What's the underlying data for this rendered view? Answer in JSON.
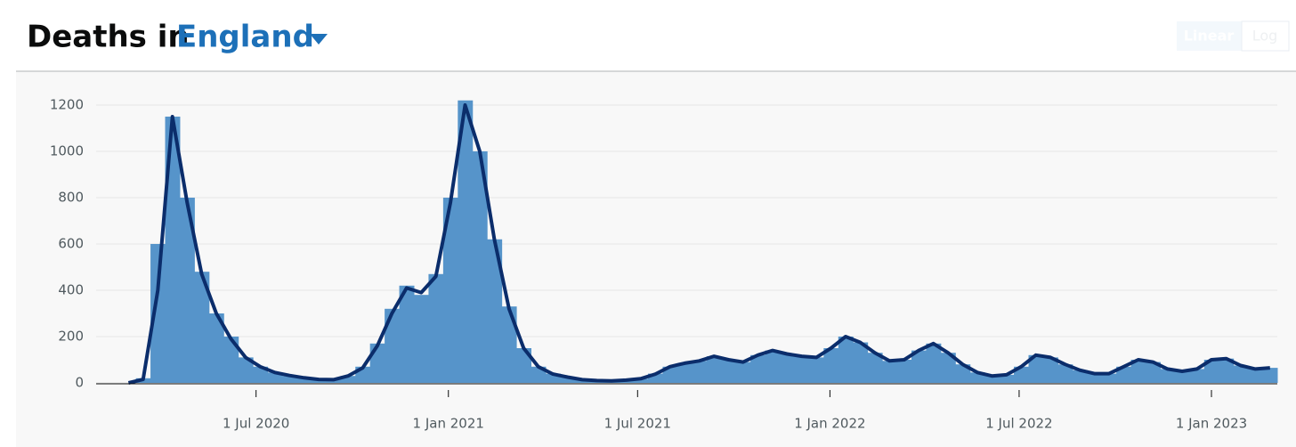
{
  "chart_data": {
    "type": "bar",
    "title": "Deaths in",
    "title_selection": "England",
    "scale_options": [
      "Linear",
      "Log"
    ],
    "log_scale": false,
    "grid": true,
    "x": [
      "2020-03-01",
      "2020-03-15",
      "2020-03-29",
      "2020-04-12",
      "2020-04-26",
      "2020-05-10",
      "2020-05-24",
      "2020-06-07",
      "2020-06-21",
      "2020-07-05",
      "2020-07-19",
      "2020-08-02",
      "2020-08-16",
      "2020-08-30",
      "2020-09-13",
      "2020-09-27",
      "2020-10-11",
      "2020-10-25",
      "2020-11-08",
      "2020-11-22",
      "2020-12-06",
      "2020-12-20",
      "2021-01-03",
      "2021-01-17",
      "2021-01-31",
      "2021-02-14",
      "2021-02-28",
      "2021-03-14",
      "2021-03-28",
      "2021-04-11",
      "2021-04-25",
      "2021-05-09",
      "2021-05-23",
      "2021-06-06",
      "2021-06-20",
      "2021-07-04",
      "2021-07-18",
      "2021-08-01",
      "2021-08-15",
      "2021-08-29",
      "2021-09-12",
      "2021-09-26",
      "2021-10-10",
      "2021-10-24",
      "2021-11-07",
      "2021-11-21",
      "2021-12-05",
      "2021-12-19",
      "2022-01-02",
      "2022-01-16",
      "2022-01-30",
      "2022-02-13",
      "2022-02-27",
      "2022-03-13",
      "2022-03-27",
      "2022-04-10",
      "2022-04-24",
      "2022-05-08",
      "2022-05-22",
      "2022-06-05",
      "2022-06-19",
      "2022-07-03",
      "2022-07-17",
      "2022-07-31",
      "2022-08-14",
      "2022-08-28",
      "2022-09-11",
      "2022-09-25",
      "2022-10-09",
      "2022-10-23",
      "2022-11-06",
      "2022-11-20",
      "2022-12-04",
      "2022-12-18",
      "2023-01-01",
      "2023-01-15",
      "2023-01-29",
      "2023-02-12",
      "2023-02-26"
    ],
    "series": [
      {
        "type": "bar",
        "color": "#5694ca",
        "values": [
          0,
          20,
          600,
          1150,
          800,
          480,
          300,
          200,
          110,
          70,
          45,
          30,
          22,
          15,
          15,
          30,
          70,
          170,
          320,
          420,
          380,
          470,
          800,
          1220,
          1000,
          620,
          330,
          150,
          70,
          40,
          25,
          15,
          10,
          10,
          12,
          18,
          40,
          70,
          85,
          95,
          115,
          100,
          90,
          120,
          140,
          125,
          115,
          110,
          150,
          200,
          175,
          130,
          95,
          100,
          140,
          170,
          130,
          80,
          45,
          30,
          35,
          70,
          120,
          110,
          80,
          55,
          40,
          40,
          70,
          100,
          90,
          60,
          50,
          60,
          100,
          105,
          75,
          60,
          65
        ]
      },
      {
        "type": "line",
        "color": "#0b2d6b",
        "values": [
          0,
          15,
          400,
          1150,
          780,
          470,
          300,
          190,
          110,
          70,
          45,
          32,
          22,
          15,
          14,
          30,
          65,
          160,
          300,
          410,
          390,
          460,
          780,
          1200,
          1000,
          620,
          320,
          150,
          70,
          38,
          25,
          14,
          10,
          9,
          12,
          18,
          38,
          70,
          85,
          95,
          115,
          100,
          90,
          120,
          140,
          125,
          115,
          110,
          150,
          200,
          175,
          130,
          95,
          100,
          140,
          170,
          130,
          80,
          45,
          30,
          35,
          70,
          120,
          110,
          80,
          55,
          40,
          40,
          70,
          100,
          90,
          60,
          50,
          60,
          100,
          105,
          75,
          60,
          65
        ]
      }
    ],
    "xlim": [
      "2020-01-30",
      "2023-03-05"
    ],
    "xticks": [
      {
        "value": "2020-07-01",
        "label": "1 Jul 2020"
      },
      {
        "value": "2021-01-01",
        "label": "1 Jan 2021"
      },
      {
        "value": "2021-07-01",
        "label": "1 Jul 2021"
      },
      {
        "value": "2022-01-01",
        "label": "1 Jan 2022"
      },
      {
        "value": "2022-07-01",
        "label": "1 Jul 2022"
      },
      {
        "value": "2023-01-01",
        "label": "1 Jan 2023"
      }
    ],
    "ylim": [
      0,
      1346
    ],
    "yticks": [
      0,
      200,
      400,
      600,
      800,
      1000,
      1200
    ]
  }
}
